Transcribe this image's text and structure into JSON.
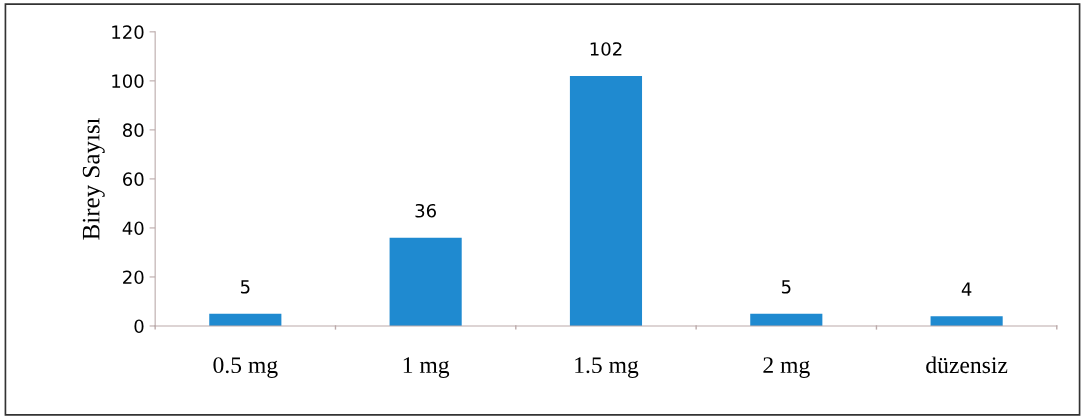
{
  "chart_data": {
    "type": "bar",
    "ylabel": "Birey Sayısı",
    "categories": [
      "0.5 mg",
      "1 mg",
      "1.5 mg",
      "2 mg",
      "düzensiz"
    ],
    "values": [
      5,
      36,
      102,
      5,
      4
    ],
    "color": "#1f8ad0",
    "ylim": [
      0,
      120
    ],
    "yticks": [
      0,
      20,
      40,
      60,
      80,
      100,
      120
    ],
    "grid": false,
    "data_labels": true
  }
}
